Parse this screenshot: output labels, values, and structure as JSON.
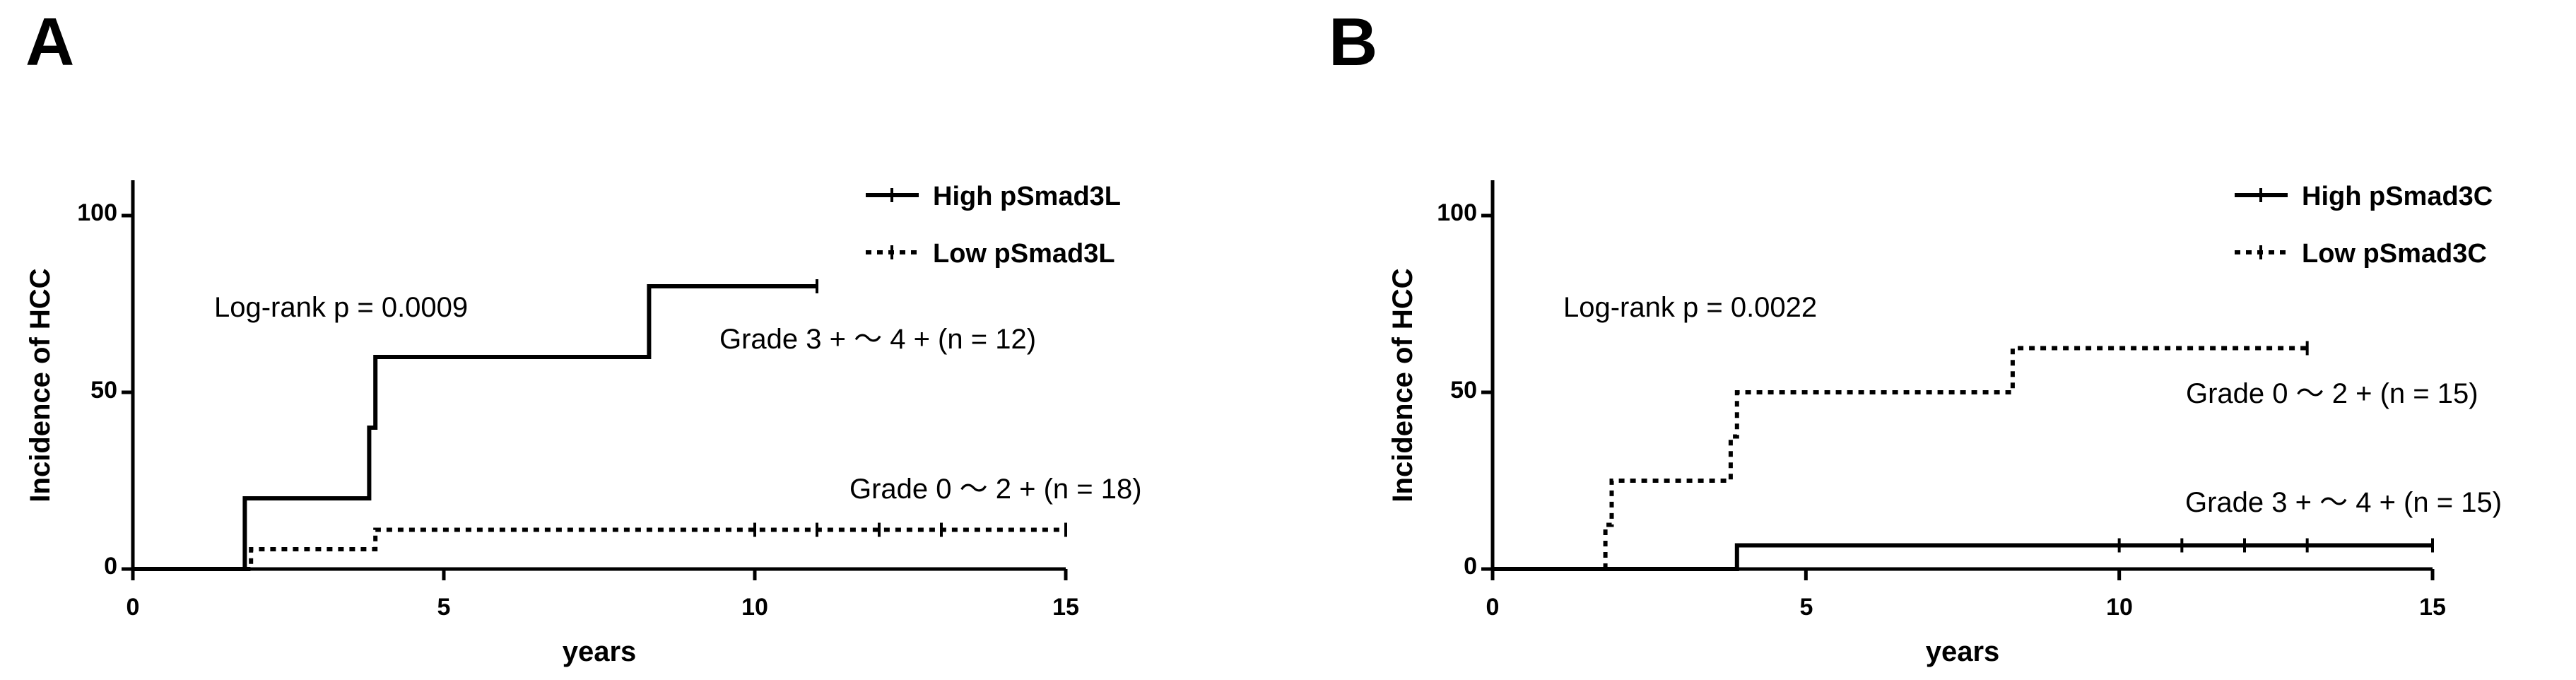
{
  "chart_data": [
    {
      "panel_label": "A",
      "type": "line",
      "step": true,
      "ylabel": "Incidence of HCC",
      "xlabel": "years",
      "xlim": [
        0,
        15
      ],
      "ylim": [
        0,
        100
      ],
      "xticks": [
        0,
        5,
        10,
        15
      ],
      "yticks": [
        0,
        50,
        100
      ],
      "legend_position": "top-right",
      "series": [
        {
          "name": "High pSmad3L",
          "style": "solid",
          "x": [
            0,
            1.8,
            1.8,
            3.8,
            3.8,
            3.9,
            3.9,
            8.3,
            8.3,
            11
          ],
          "y": [
            0,
            0,
            20,
            20,
            40,
            40,
            60,
            60,
            80,
            80
          ],
          "censored_x": [
            11
          ]
        },
        {
          "name": "Low pSmad3L",
          "style": "dotted",
          "x": [
            1.8,
            1.9,
            1.9,
            3.9,
            3.9,
            15
          ],
          "y": [
            0,
            0,
            5.6,
            5.6,
            11.1,
            11.1
          ],
          "censored_x": [
            10,
            11,
            12,
            13,
            15
          ]
        }
      ],
      "annotations": [
        {
          "text": "Log-rank p = 0.0009"
        },
        {
          "text": "Grade 3 + ～ 4 + (n = 12)"
        },
        {
          "text": "Grade 0 ～ 2 + (n = 18)"
        }
      ]
    },
    {
      "panel_label": "B",
      "type": "line",
      "step": true,
      "ylabel": "Incidence of HCC",
      "xlabel": "years",
      "xlim": [
        0,
        15
      ],
      "ylim": [
        0,
        100
      ],
      "xticks": [
        0,
        5,
        10,
        15
      ],
      "yticks": [
        0,
        50,
        100
      ],
      "legend_position": "top-right",
      "series": [
        {
          "name": "High pSmad3C",
          "style": "solid",
          "x": [
            0,
            3.9,
            3.9,
            15
          ],
          "y": [
            0,
            0,
            6.7,
            6.7
          ],
          "censored_x": [
            10,
            11,
            12,
            13,
            15
          ]
        },
        {
          "name": "Low pSmad3C",
          "style": "dotted",
          "x": [
            1.8,
            1.8,
            1.9,
            1.9,
            3.8,
            3.8,
            3.9,
            3.9,
            8.3,
            8.3,
            13
          ],
          "y": [
            0,
            12.5,
            12.5,
            25,
            25,
            37.5,
            37.5,
            50,
            50,
            62.5,
            62.5
          ],
          "censored_x": [
            13
          ]
        }
      ],
      "annotations": [
        {
          "text": "Log-rank p = 0.0022"
        },
        {
          "text": "Grade 0 ～ 2 + (n = 15)"
        },
        {
          "text": "Grade 3 + ～ 4 + (n = 15)"
        }
      ]
    }
  ]
}
